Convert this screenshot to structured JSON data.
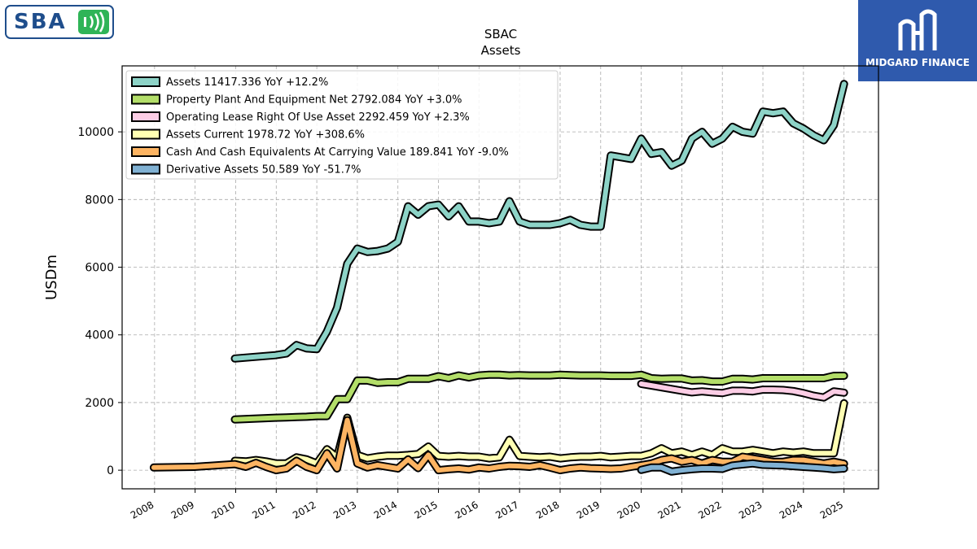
{
  "brand": {
    "left_logo_text": "SBA",
    "right_logo_text": "MIDGARD FINANCE"
  },
  "chart_data": {
    "type": "line",
    "title": "SBAC",
    "subtitle": "Assets",
    "ylabel": "USDm",
    "xlabel": "",
    "xlim": [
      2007.2,
      2025.85
    ],
    "ylim": [
      -550,
      11950
    ],
    "yticks": [
      0,
      2000,
      4000,
      6000,
      8000,
      10000
    ],
    "xticks": [
      "2008",
      "2009",
      "2010",
      "2011",
      "2012",
      "2013",
      "2014",
      "2015",
      "2016",
      "2017",
      "2018",
      "2019",
      "2020",
      "2021",
      "2022",
      "2023",
      "2024",
      "2025"
    ],
    "grid": true,
    "legend_position": "top-left",
    "series": [
      {
        "name": "Assets",
        "label": "Assets  11417.336 YoY +12.2%",
        "color": "#8dd3c7",
        "x": [
          2009.98,
          2010.98,
          2011.25,
          2011.5,
          2011.75,
          2012.0,
          2012.25,
          2012.5,
          2012.75,
          2013.0,
          2013.25,
          2013.5,
          2013.75,
          2014.0,
          2014.25,
          2014.5,
          2014.75,
          2015.0,
          2015.25,
          2015.5,
          2015.75,
          2016.0,
          2016.25,
          2016.5,
          2016.75,
          2017.0,
          2017.25,
          2017.5,
          2017.75,
          2018.0,
          2018.25,
          2018.5,
          2018.75,
          2019.0,
          2019.25,
          2019.5,
          2019.75,
          2020.0,
          2020.25,
          2020.5,
          2020.75,
          2021.0,
          2021.25,
          2021.5,
          2021.75,
          2022.0,
          2022.25,
          2022.5,
          2022.75,
          2023.0,
          2023.25,
          2023.5,
          2023.75,
          2024.0,
          2024.25,
          2024.5,
          2024.75,
          2025.0
        ],
        "y": [
          3300,
          3400,
          3450,
          3700,
          3600,
          3580,
          4100,
          4800,
          6100,
          6550,
          6450,
          6480,
          6550,
          6750,
          7800,
          7550,
          7800,
          7850,
          7500,
          7800,
          7350,
          7350,
          7300,
          7350,
          7950,
          7350,
          7250,
          7250,
          7250,
          7300,
          7400,
          7250,
          7200,
          7200,
          9300,
          9250,
          9200,
          9800,
          9350,
          9400,
          9000,
          9150,
          9800,
          10000,
          9650,
          9800,
          10150,
          10000,
          9950,
          10600,
          10550,
          10600,
          10250,
          10100,
          9900,
          9750,
          10200,
          11417.336
        ]
      },
      {
        "name": "Property Plant And Equipment Net",
        "label": "Property Plant And Equipment Net  2792.084 YoY +3.0%",
        "color": "#b3de69",
        "x": [
          2009.98,
          2010.98,
          2011.25,
          2011.5,
          2011.75,
          2012.0,
          2012.25,
          2012.5,
          2012.75,
          2013.0,
          2013.25,
          2013.5,
          2013.75,
          2014.0,
          2014.25,
          2014.5,
          2014.75,
          2015.0,
          2015.25,
          2015.5,
          2015.75,
          2016.0,
          2016.25,
          2016.5,
          2016.75,
          2017.0,
          2017.25,
          2017.5,
          2017.75,
          2018.0,
          2018.25,
          2018.5,
          2018.75,
          2019.0,
          2019.25,
          2019.5,
          2019.75,
          2020.0,
          2020.25,
          2020.5,
          2020.75,
          2021.0,
          2021.25,
          2021.5,
          2021.75,
          2022.0,
          2022.25,
          2022.5,
          2022.75,
          2023.0,
          2023.25,
          2023.5,
          2023.75,
          2024.0,
          2024.25,
          2024.5,
          2024.75,
          2025.0
        ],
        "y": [
          1500,
          1550,
          1560,
          1570,
          1580,
          1600,
          1600,
          2100,
          2100,
          2650,
          2650,
          2580,
          2600,
          2600,
          2700,
          2700,
          2700,
          2780,
          2720,
          2800,
          2740,
          2800,
          2820,
          2820,
          2800,
          2810,
          2800,
          2800,
          2800,
          2820,
          2810,
          2800,
          2800,
          2800,
          2790,
          2790,
          2790,
          2820,
          2720,
          2700,
          2710,
          2710,
          2650,
          2660,
          2620,
          2620,
          2700,
          2700,
          2680,
          2720,
          2720,
          2720,
          2720,
          2720,
          2720,
          2720,
          2790,
          2792.084
        ]
      },
      {
        "name": "Operating Lease Right Of Use Asset",
        "label": "Operating Lease Right Of Use Asset  2292.459 YoY +2.3%",
        "color": "#fccde5",
        "x": [
          2020.0,
          2020.25,
          2020.5,
          2020.75,
          2021.0,
          2021.25,
          2021.5,
          2021.75,
          2022.0,
          2022.25,
          2022.5,
          2022.75,
          2023.0,
          2023.25,
          2023.5,
          2023.75,
          2024.0,
          2024.25,
          2024.5,
          2024.75,
          2025.0
        ],
        "y": [
          2550,
          2500,
          2450,
          2400,
          2350,
          2300,
          2330,
          2300,
          2280,
          2350,
          2350,
          2330,
          2380,
          2380,
          2370,
          2340,
          2280,
          2200,
          2150,
          2330,
          2292.459
        ]
      },
      {
        "name": "Assets Current",
        "label": "Assets Current  1978.72 YoY +308.6%",
        "color": "#ffffb3",
        "x": [
          2009.98,
          2010.25,
          2010.5,
          2010.75,
          2011.0,
          2011.25,
          2011.5,
          2011.75,
          2012.0,
          2012.25,
          2012.5,
          2012.75,
          2013.0,
          2013.25,
          2013.5,
          2013.75,
          2014.0,
          2014.25,
          2014.5,
          2014.75,
          2015.0,
          2015.25,
          2015.5,
          2015.75,
          2016.0,
          2016.25,
          2016.5,
          2016.75,
          2017.0,
          2017.25,
          2017.5,
          2017.75,
          2018.0,
          2018.25,
          2018.5,
          2018.75,
          2019.0,
          2019.25,
          2019.5,
          2019.75,
          2020.0,
          2020.25,
          2020.5,
          2020.75,
          2021.0,
          2021.25,
          2021.5,
          2021.75,
          2022.0,
          2022.25,
          2022.5,
          2022.75,
          2023.0,
          2023.25,
          2023.5,
          2023.75,
          2024.0,
          2024.25,
          2024.5,
          2024.75,
          2025.0
        ],
        "y": [
          280,
          260,
          300,
          260,
          200,
          200,
          380,
          320,
          200,
          620,
          380,
          1550,
          450,
          350,
          400,
          430,
          430,
          450,
          480,
          700,
          420,
          400,
          420,
          400,
          400,
          350,
          380,
          900,
          420,
          400,
          380,
          400,
          350,
          380,
          400,
          400,
          420,
          380,
          400,
          420,
          420,
          500,
          650,
          500,
          550,
          450,
          550,
          450,
          650,
          550,
          550,
          600,
          550,
          500,
          550,
          520,
          550,
          500,
          500,
          500,
          1978.72
        ]
      },
      {
        "name": "Cash And Cash Equivalents At Carrying Value",
        "label": "Cash And Cash Equivalents At Carrying Value  189.841 YoY -9.0%",
        "color": "#fdb462",
        "x": [
          2007.98,
          2008.98,
          2009.98,
          2010.25,
          2010.5,
          2010.75,
          2011.0,
          2011.25,
          2011.5,
          2011.75,
          2012.0,
          2012.25,
          2012.5,
          2012.75,
          2013.0,
          2013.25,
          2013.5,
          2013.75,
          2014.0,
          2014.25,
          2014.5,
          2014.75,
          2015.0,
          2015.25,
          2015.5,
          2015.75,
          2016.0,
          2016.25,
          2016.5,
          2016.75,
          2017.0,
          2017.25,
          2017.5,
          2017.75,
          2018.0,
          2018.25,
          2018.5,
          2018.75,
          2019.0,
          2019.25,
          2019.5,
          2019.75,
          2020.0,
          2020.25,
          2020.5,
          2020.75,
          2021.0,
          2021.25,
          2021.5,
          2021.75,
          2022.0,
          2022.25,
          2022.5,
          2022.75,
          2023.0,
          2023.25,
          2023.5,
          2023.75,
          2024.0,
          2024.25,
          2024.5,
          2024.75,
          2025.0
        ],
        "y": [
          80,
          100,
          180,
          100,
          220,
          100,
          0,
          50,
          280,
          100,
          0,
          500,
          50,
          1480,
          200,
          80,
          150,
          100,
          50,
          320,
          60,
          450,
          0,
          30,
          50,
          20,
          80,
          50,
          100,
          130,
          120,
          100,
          150,
          80,
          0,
          50,
          80,
          60,
          50,
          40,
          50,
          100,
          150,
          200,
          300,
          350,
          250,
          300,
          200,
          300,
          250,
          250,
          400,
          350,
          300,
          250,
          250,
          300,
          300,
          250,
          200,
          250,
          189.841
        ]
      },
      {
        "name": "Derivative Assets",
        "label": "Derivative Assets  50.589 YoY -51.7%",
        "color": "#80b1d3",
        "x": [
          2020.0,
          2020.25,
          2020.5,
          2020.75,
          2021.0,
          2021.25,
          2021.5,
          2021.75,
          2022.0,
          2022.25,
          2022.5,
          2022.75,
          2023.0,
          2023.25,
          2023.5,
          2023.75,
          2024.0,
          2024.25,
          2024.5,
          2024.75,
          2025.0
        ],
        "y": [
          10,
          80,
          80,
          -40,
          0,
          30,
          50,
          50,
          40,
          140,
          170,
          200,
          160,
          150,
          140,
          120,
          100,
          80,
          60,
          30,
          50.589
        ]
      }
    ]
  }
}
